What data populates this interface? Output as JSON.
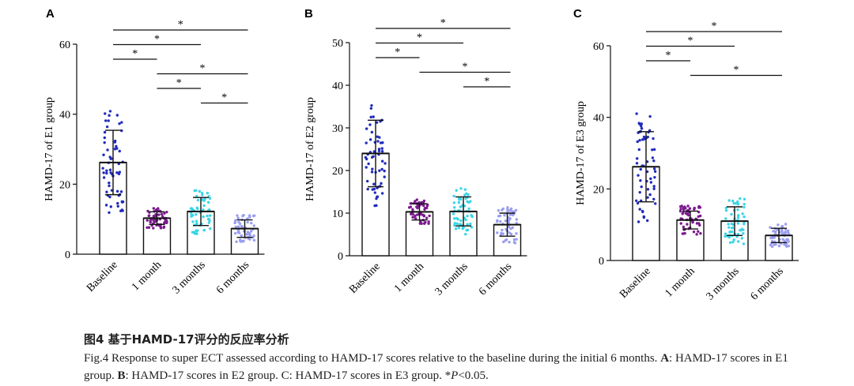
{
  "chart_data": [
    {
      "type": "bar",
      "panel_label": "A",
      "categories": [
        "Baseline",
        "1 month",
        "3 months",
        "6 months"
      ],
      "values": [
        26.2,
        10.3,
        12.2,
        7.3
      ],
      "errors": [
        9.2,
        1.8,
        4.0,
        2.5
      ],
      "point_color": "#1f2bbd",
      "series_colors": [
        "#1f2bbd",
        "#7a1a8c",
        "#3ad6e6",
        "#9b9ef0"
      ],
      "ylabel": "HAMD-17 of E1 group",
      "ylim": [
        0,
        60
      ],
      "yticks": [
        0,
        20,
        40,
        60
      ],
      "significance": [
        {
          "from": 0,
          "to": 1,
          "label": "*"
        },
        {
          "from": 0,
          "to": 2,
          "label": "*"
        },
        {
          "from": 0,
          "to": 3,
          "label": "*"
        },
        {
          "from": 1,
          "to": 2,
          "label": "*"
        },
        {
          "from": 1,
          "to": 3,
          "label": "*"
        },
        {
          "from": 2,
          "to": 3,
          "label": "*"
        }
      ]
    },
    {
      "type": "bar",
      "panel_label": "B",
      "categories": [
        "Baseline",
        "1 month",
        "3 months",
        "6 months"
      ],
      "values": [
        24.0,
        10.3,
        10.4,
        7.3
      ],
      "errors": [
        7.8,
        1.9,
        3.4,
        2.7
      ],
      "series_colors": [
        "#1f2bbd",
        "#7a1a8c",
        "#3ad6e6",
        "#9b9ef0"
      ],
      "ylabel": "HAMD-17 of E2 group",
      "ylim": [
        0,
        50
      ],
      "yticks": [
        0,
        10,
        20,
        30,
        40,
        50
      ],
      "significance": [
        {
          "from": 0,
          "to": 1,
          "label": "*"
        },
        {
          "from": 0,
          "to": 2,
          "label": "*"
        },
        {
          "from": 0,
          "to": 3,
          "label": "*"
        },
        {
          "from": 1,
          "to": 3,
          "label": "*"
        },
        {
          "from": 2,
          "to": 3,
          "label": "*"
        }
      ]
    },
    {
      "type": "bar",
      "panel_label": "C",
      "categories": [
        "Baseline",
        "1 month",
        "3 months",
        "6 months"
      ],
      "values": [
        26.2,
        11.3,
        11.0,
        7.0
      ],
      "errors": [
        9.8,
        2.5,
        4.0,
        2.0
      ],
      "series_colors": [
        "#1f2bbd",
        "#7a1a8c",
        "#3ad6e6",
        "#9b9ef0"
      ],
      "ylabel": "HAMD-17 of E3 group",
      "ylim": [
        0,
        60
      ],
      "yticks": [
        0,
        20,
        40,
        60
      ],
      "significance": [
        {
          "from": 0,
          "to": 1,
          "label": "*"
        },
        {
          "from": 0,
          "to": 2,
          "label": "*"
        },
        {
          "from": 0,
          "to": 3,
          "label": "*"
        },
        {
          "from": 1,
          "to": 3,
          "label": "*"
        }
      ]
    }
  ],
  "caption": {
    "title": "图4 基于HAMD-17评分的反应率分析",
    "text_a": "Fig.4 Response to super ECT assessed according to HAMD-17 scores relative to the baseline during the initial 6 months. ",
    "label_a": "A",
    "text_a2": ": HAMD-17 scores in E1 group. ",
    "label_b": "B",
    "text_b": ": HAMD-17 scores in E2 group. C: HAMD-17 scores in E3 group. *",
    "p_italic": "P",
    "p_rest": "<0.05."
  }
}
